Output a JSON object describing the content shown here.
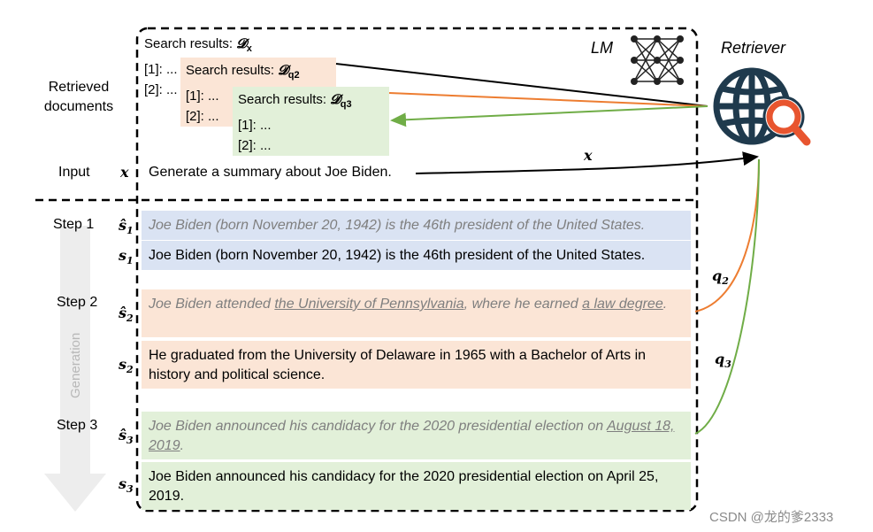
{
  "labels": {
    "lm": "LM",
    "retriever": "Retriever",
    "retrieved_documents": "Retrieved documents",
    "input": "Input",
    "input_symbol": "x",
    "arrow_x": "x",
    "q2": "q",
    "q2_sub": "2",
    "q3": "q",
    "q3_sub": "3",
    "generation": "Generation",
    "watermark": "CSDN @龙的爹2333"
  },
  "search_results": {
    "x": {
      "title": "Search results:",
      "symbol": "𝓓",
      "sub": "x",
      "lines": [
        "[1]: ...",
        "[2]: ..."
      ]
    },
    "q2": {
      "title": "Search results:",
      "symbol": "𝓓",
      "sub": "q2",
      "lines": [
        "[1]: ...",
        "[2]: ..."
      ]
    },
    "q3": {
      "title": "Search results:",
      "symbol": "𝓓",
      "sub": "q3",
      "lines": [
        "[1]: ...",
        "[2]: ..."
      ]
    }
  },
  "input_text": "Generate a summary about Joe Biden.",
  "steps": [
    {
      "label": "Step 1"
    },
    {
      "label": "Step 2"
    },
    {
      "label": "Step 3"
    }
  ],
  "rows": {
    "s1_hat": {
      "sym": "ŝ",
      "sub": "1",
      "text": "Joe Biden (born November 20, 1942) is the 46th president of the United States."
    },
    "s1": {
      "sym": "s",
      "sub": "1",
      "text": "Joe Biden (born November 20, 1942) is the 46th president of the United States."
    },
    "s2_hat": {
      "sym": "ŝ",
      "sub": "2",
      "part1": "Joe Biden attended ",
      "u1": "the University of Pennsylvania",
      "part2": ", where he earned ",
      "u2": "a law degree",
      "part3": "."
    },
    "s2": {
      "sym": "s",
      "sub": "2",
      "text": "He graduated from the University of Delaware in 1965 with a Bachelor of Arts in history and political science."
    },
    "s3_hat": {
      "sym": "ŝ",
      "sub": "3",
      "part1": "Joe Biden announced his candidacy for the 2020 presidential election on ",
      "u1": "August 18, 2019",
      "part2": "."
    },
    "s3": {
      "sym": "s",
      "sub": "3",
      "text": "Joe Biden announced his candidacy for the 2020 presidential election on April 25, 2019."
    }
  },
  "colors": {
    "blue_fill": "#dae3f3",
    "orange_fill": "#fbe5d6",
    "green_fill": "#e2f0d9",
    "orange_line": "#ed7d31",
    "green_line": "#70ad47",
    "globe": "#1f3a4d",
    "magnifier": "#e8552f"
  }
}
